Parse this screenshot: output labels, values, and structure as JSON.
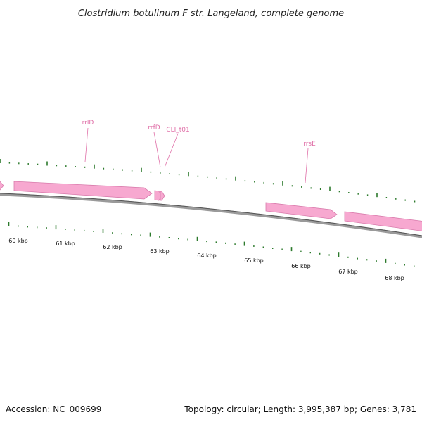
{
  "title": "Clostridium botulinum F str. Langeland, complete genome",
  "accession": "Accession: NC_009699",
  "summary": "Topology: circular; Length: 3,995,387 bp; Genes: 3,781",
  "colors": {
    "backbone": "#777777",
    "feature_fill": "#f7a8d0",
    "feature_edge": "#d87aab",
    "tick": "#2c7a2c",
    "label": "#e070a8"
  },
  "scale_labels": [
    "60 kbp",
    "61 kbp",
    "62 kbp",
    "63 kbp",
    "64 kbp",
    "65 kbp",
    "66 kbp",
    "67 kbp",
    "68 kbp"
  ],
  "gene_labels": [
    "rrlD",
    "rrfD",
    "CLI_t01",
    "rrsE"
  ]
}
